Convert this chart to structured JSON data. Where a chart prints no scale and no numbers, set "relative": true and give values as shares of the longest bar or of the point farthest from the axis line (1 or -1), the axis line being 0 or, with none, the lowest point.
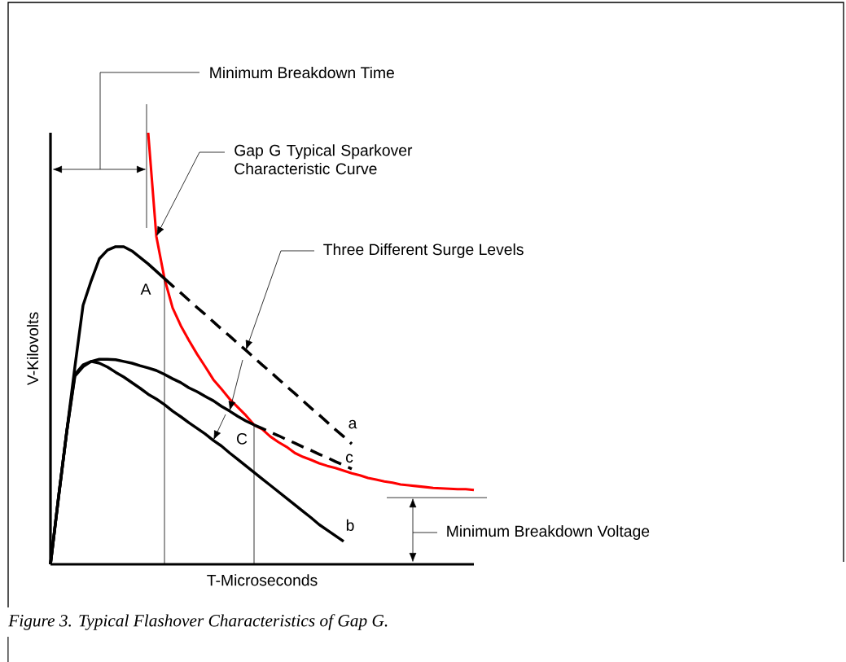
{
  "chart_data": {
    "type": "line",
    "relative": true,
    "xlabel": "T-Microseconds",
    "ylabel": "V-Kilovolts",
    "categories": [
      null,
      null,
      null,
      null,
      null,
      null,
      null,
      null,
      null,
      null,
      null,
      null,
      null,
      null,
      null,
      null,
      null,
      null,
      null,
      null,
      null,
      null,
      null,
      null,
      null,
      null,
      null,
      null,
      null,
      null,
      null,
      null,
      null,
      null,
      null,
      null,
      null,
      null,
      null,
      null,
      null,
      null,
      null,
      null,
      null,
      null,
      null,
      null,
      null,
      null,
      null,
      null,
      null
    ],
    "series": [
      {
        "color": "#ff0000",
        "values": [
          null,
          null,
          null,
          null,
          null,
          null,
          null,
          null,
          null,
          null,
          null,
          null,
          1.0,
          0.76,
          0.662,
          0.594,
          0.553,
          0.519,
          0.487,
          0.458,
          0.428,
          0.406,
          0.383,
          0.364,
          0.345,
          0.323,
          0.313,
          0.296,
          0.283,
          0.272,
          0.258,
          0.249,
          0.242,
          0.234,
          0.228,
          0.223,
          0.217,
          0.211,
          0.206,
          0.2,
          0.196,
          0.192,
          0.189,
          0.185,
          0.183,
          0.181,
          0.179,
          0.177,
          0.176,
          0.175,
          0.174,
          0.174,
          0.172
        ]
      },
      {
        "color": "#000000",
        "values": [
          0,
          0.157,
          0.308,
          0.458,
          0.6,
          0.657,
          0.708,
          0.728,
          0.736,
          0.736,
          0.726,
          0.711,
          0.696,
          0.679,
          0.662,
          null,
          null,
          null,
          null,
          null,
          null,
          null,
          null,
          null,
          null,
          null,
          null,
          null,
          null,
          null,
          null,
          null,
          null,
          null,
          null,
          null,
          null,
          null,
          null,
          null,
          null,
          null,
          null,
          null,
          null,
          null,
          null,
          null,
          null,
          null,
          null,
          null,
          null
        ]
      },
      {
        "color": "#000000",
        "line_style": "dashed",
        "values": [
          null,
          null,
          null,
          null,
          null,
          null,
          null,
          null,
          null,
          null,
          null,
          null,
          null,
          null,
          0.662,
          0.645,
          0.629,
          0.612,
          0.595,
          0.579,
          0.562,
          0.545,
          0.529,
          0.512,
          0.496,
          0.479,
          0.462,
          0.446,
          0.429,
          0.412,
          0.396,
          0.379,
          0.362,
          0.346,
          0.329,
          0.312,
          0.296,
          0.279,
          null,
          null,
          null,
          null,
          null,
          null,
          null,
          null,
          null,
          null,
          null,
          null,
          null,
          null,
          null
        ]
      },
      {
        "color": "#000000",
        "values": [
          0,
          0.157,
          0.308,
          0.436,
          0.458,
          0.47,
          0.475,
          0.475,
          0.474,
          0.47,
          0.466,
          0.46,
          0.455,
          0.449,
          0.44,
          0.43,
          0.421,
          0.409,
          0.4,
          0.389,
          0.379,
          0.366,
          0.355,
          0.343,
          0.332,
          0.323,
          null,
          null,
          null,
          null,
          null,
          null,
          null,
          null,
          null,
          null,
          null,
          null,
          null,
          null,
          null,
          null,
          null,
          null,
          null,
          null,
          null,
          null,
          null,
          null,
          null,
          null,
          null
        ]
      },
      {
        "color": "#000000",
        "line_style": "dashed",
        "values": [
          null,
          null,
          null,
          null,
          null,
          null,
          null,
          null,
          null,
          null,
          null,
          null,
          null,
          null,
          null,
          null,
          null,
          null,
          null,
          null,
          null,
          null,
          null,
          null,
          null,
          0.323,
          0.315,
          0.306,
          0.298,
          0.289,
          0.281,
          0.272,
          0.264,
          0.255,
          0.247,
          0.238,
          0.23,
          0.221,
          null,
          null,
          null,
          null,
          null,
          null,
          null,
          null,
          null,
          null,
          null,
          null,
          null,
          null,
          null
        ]
      },
      {
        "color": "#000000",
        "values": [
          0,
          0.157,
          0.308,
          0.44,
          0.462,
          0.47,
          0.466,
          0.457,
          0.445,
          0.434,
          0.421,
          0.408,
          0.394,
          0.383,
          0.37,
          0.355,
          0.342,
          0.328,
          0.315,
          0.302,
          0.287,
          0.274,
          0.258,
          0.243,
          0.228,
          0.213,
          0.198,
          0.183,
          0.168,
          0.153,
          0.138,
          0.123,
          0.108,
          0.092,
          0.079,
          0.066,
          0.053,
          null,
          null,
          null,
          null,
          null,
          null,
          null,
          null,
          null,
          null,
          null,
          null,
          null,
          null,
          null,
          null
        ]
      }
    ],
    "annotations": [
      "Minimum Breakdown Time",
      "Gap G Typical Sparkover Characteristic Curve",
      "Three Different Surge Levels",
      "A",
      "C",
      "a",
      "b",
      "c",
      "Minimum Breakdown Voltage",
      "*Figure 3. Typical Flashover Characteristics of Gap G.*"
    ]
  }
}
